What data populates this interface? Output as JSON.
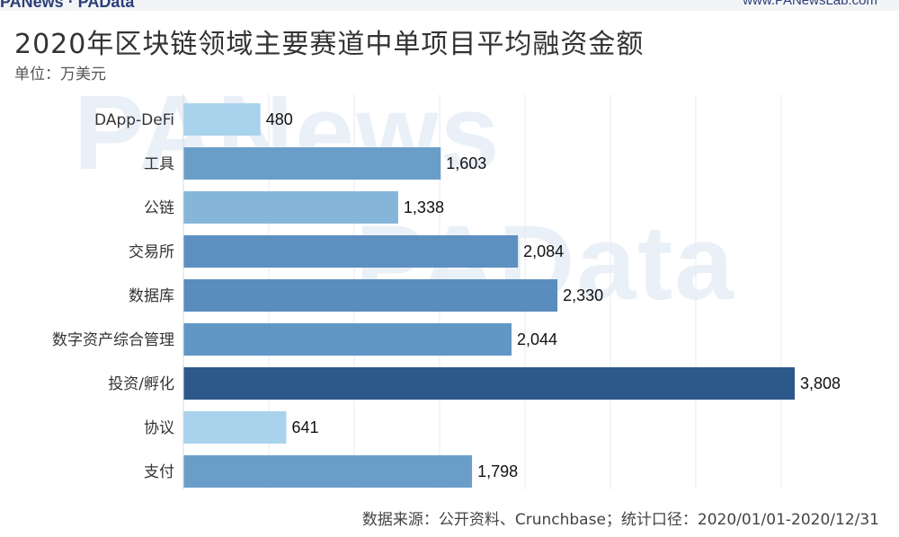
{
  "header": {
    "brand": "PANews · PAData",
    "site": "www.PANewsLab.com"
  },
  "watermark": {
    "line1": "PANews",
    "line2": "PAData"
  },
  "chart_data": {
    "type": "bar",
    "orientation": "horizontal",
    "title": "2020年区块链领域主要赛道中单项目平均融资金额",
    "subtitle": "单位：万美元",
    "categories": [
      "DApp-DeFi",
      "工具",
      "公链",
      "交易所",
      "数据库",
      "数字资产综合管理",
      "投资/孵化",
      "协议",
      "支付"
    ],
    "values": [
      480,
      1603,
      1338,
      2084,
      2330,
      2044,
      3808,
      641,
      1798
    ],
    "value_labels": [
      "480",
      "1,603",
      "1,338",
      "2,084",
      "2,330",
      "2,044",
      "3,808",
      "641",
      "1,798"
    ],
    "colors": [
      "#a9d2ec",
      "#6a9ec9",
      "#86b5da",
      "#5d90c0",
      "#5a8cbd",
      "#6097c5",
      "#2c5989",
      "#a9d2ec",
      "#6a9ec9"
    ],
    "xlim": [
      0,
      3808
    ],
    "grid": true,
    "source": "数据来源：公开资料、Crunchbase；统计口径：2020/01/01-2020/12/31"
  }
}
